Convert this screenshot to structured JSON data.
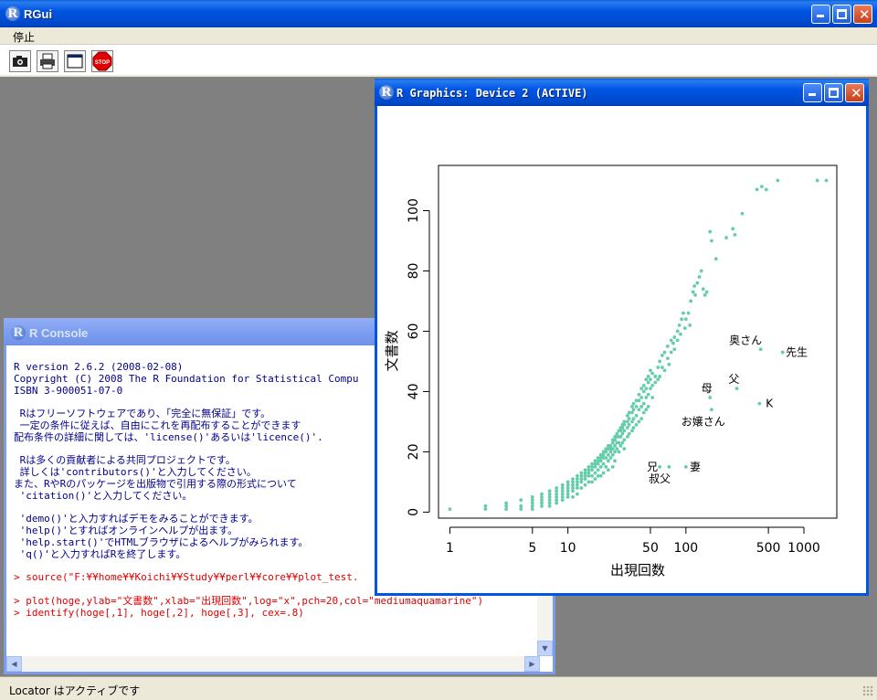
{
  "rgui": {
    "title": "RGui",
    "menu": [
      "停止"
    ],
    "toolbar": [
      "camera-icon",
      "printer-icon",
      "window-icon",
      "stop-icon"
    ],
    "stop_label": "STOP",
    "status": "Locator はアクティブです"
  },
  "console": {
    "title": "R Console",
    "lines": [
      {
        "text": "R version 2.6.2 (2008-02-08)",
        "type": "out"
      },
      {
        "text": "Copyright (C) 2008 The R Foundation for Statistical Compu",
        "type": "out"
      },
      {
        "text": "ISBN 3-900051-07-0",
        "type": "out"
      },
      {
        "text": "",
        "type": "out"
      },
      {
        "text": " Rはフリーソフトウェアであり、「完全に無保証」です。",
        "type": "out"
      },
      {
        "text": " 一定の条件に従えば、自由にこれを再配布することができます",
        "type": "out"
      },
      {
        "text": "配布条件の詳細に関しては、'license()'あるいは'licence()'.",
        "type": "out"
      },
      {
        "text": "",
        "type": "out"
      },
      {
        "text": " Rは多くの貢献者による共同プロジェクトです。",
        "type": "out"
      },
      {
        "text": " 詳しくは'contributors()'と入力してください。",
        "type": "out"
      },
      {
        "text": "また、RやRのパッケージを出版物で引用する際の形式について",
        "type": "out"
      },
      {
        "text": " 'citation()'と入力してください。",
        "type": "out"
      },
      {
        "text": "",
        "type": "out"
      },
      {
        "text": " 'demo()'と入力すればデモをみることができます。",
        "type": "out"
      },
      {
        "text": " 'help()'とすればオンラインヘルプが出ます。",
        "type": "out"
      },
      {
        "text": " 'help.start()'でHTMLブラウザによるヘルプがみられます。",
        "type": "out"
      },
      {
        "text": " 'q()'と入力すればRを終了します。",
        "type": "out"
      },
      {
        "text": "",
        "type": "out"
      },
      {
        "text": "> source(\"F:¥¥home¥¥Koichi¥¥Study¥¥perl¥¥core¥¥plot_test.",
        "type": "cmd"
      },
      {
        "text": "",
        "type": "out"
      },
      {
        "text": "> plot(hoge,ylab=\"文書数\",xlab=\"出現回数\",log=\"x\",pch=20,col=\"mediumaquamarine\")",
        "type": "cmd"
      },
      {
        "text": "> identify(hoge[,1], hoge[,2], hoge[,3], cex=.8)",
        "type": "cmd"
      }
    ]
  },
  "graphics": {
    "title": "R Graphics: Device 2 (ACTIVE)"
  },
  "chart_data": {
    "type": "scatter",
    "xlabel": "出現回数",
    "ylabel": "文書数",
    "x_scale": "log",
    "xlim": [
      0.8,
      1900
    ],
    "ylim": [
      -2,
      115
    ],
    "x_ticks": [
      1,
      5,
      10,
      50,
      100,
      500,
      1000
    ],
    "y_ticks": [
      0,
      20,
      40,
      60,
      80,
      100
    ],
    "color": "#66cdaa",
    "points": [
      [
        1,
        1
      ],
      [
        2,
        2
      ],
      [
        2,
        1
      ],
      [
        3,
        3
      ],
      [
        3,
        2
      ],
      [
        3,
        1
      ],
      [
        4,
        4
      ],
      [
        4,
        2
      ],
      [
        4,
        1
      ],
      [
        5,
        5
      ],
      [
        5,
        4
      ],
      [
        5,
        3
      ],
      [
        5,
        2
      ],
      [
        5,
        1
      ],
      [
        6,
        6
      ],
      [
        6,
        5
      ],
      [
        6,
        4
      ],
      [
        6,
        3
      ],
      [
        6,
        2
      ],
      [
        7,
        7
      ],
      [
        7,
        6
      ],
      [
        7,
        5
      ],
      [
        7,
        4
      ],
      [
        7,
        3
      ],
      [
        7,
        2
      ],
      [
        8,
        8
      ],
      [
        8,
        7
      ],
      [
        8,
        6
      ],
      [
        8,
        5
      ],
      [
        8,
        4
      ],
      [
        8,
        3
      ],
      [
        9,
        9
      ],
      [
        9,
        8
      ],
      [
        9,
        7
      ],
      [
        9,
        6
      ],
      [
        9,
        5
      ],
      [
        9,
        4
      ],
      [
        10,
        10
      ],
      [
        10,
        9
      ],
      [
        10,
        8
      ],
      [
        10,
        7
      ],
      [
        10,
        6
      ],
      [
        10,
        5
      ],
      [
        11,
        11
      ],
      [
        11,
        10
      ],
      [
        11,
        9
      ],
      [
        11,
        8
      ],
      [
        11,
        7
      ],
      [
        11,
        5
      ],
      [
        12,
        12
      ],
      [
        12,
        11
      ],
      [
        12,
        10
      ],
      [
        12,
        9
      ],
      [
        12,
        8
      ],
      [
        12,
        6
      ],
      [
        13,
        13
      ],
      [
        13,
        12
      ],
      [
        13,
        11
      ],
      [
        13,
        10
      ],
      [
        13,
        8
      ],
      [
        14,
        14
      ],
      [
        14,
        13
      ],
      [
        14,
        12
      ],
      [
        14,
        11
      ],
      [
        14,
        9
      ],
      [
        15,
        15
      ],
      [
        15,
        14
      ],
      [
        15,
        13
      ],
      [
        15,
        12
      ],
      [
        15,
        10
      ],
      [
        16,
        16
      ],
      [
        16,
        15
      ],
      [
        16,
        14
      ],
      [
        16,
        12
      ],
      [
        16,
        10
      ],
      [
        17,
        17
      ],
      [
        17,
        16
      ],
      [
        17,
        15
      ],
      [
        17,
        13
      ],
      [
        17,
        11
      ],
      [
        18,
        18
      ],
      [
        18,
        17
      ],
      [
        18,
        16
      ],
      [
        18,
        14
      ],
      [
        18,
        12
      ],
      [
        19,
        19
      ],
      [
        19,
        18
      ],
      [
        19,
        17
      ],
      [
        19,
        15
      ],
      [
        19,
        12
      ],
      [
        20,
        20
      ],
      [
        20,
        19
      ],
      [
        20,
        18
      ],
      [
        20,
        16
      ],
      [
        20,
        13
      ],
      [
        21,
        21
      ],
      [
        21,
        20
      ],
      [
        21,
        18
      ],
      [
        21,
        15
      ],
      [
        22,
        22
      ],
      [
        22,
        21
      ],
      [
        22,
        19
      ],
      [
        22,
        17
      ],
      [
        22,
        14
      ],
      [
        23,
        22
      ],
      [
        23,
        21
      ],
      [
        23,
        20
      ],
      [
        23,
        18
      ],
      [
        24,
        24
      ],
      [
        24,
        23
      ],
      [
        24,
        21
      ],
      [
        24,
        19
      ],
      [
        24,
        15
      ],
      [
        25,
        25
      ],
      [
        25,
        24
      ],
      [
        25,
        22
      ],
      [
        25,
        20
      ],
      [
        25,
        17
      ],
      [
        26,
        26
      ],
      [
        26,
        25
      ],
      [
        26,
        23
      ],
      [
        26,
        21
      ],
      [
        27,
        27
      ],
      [
        27,
        25
      ],
      [
        27,
        23
      ],
      [
        27,
        20
      ],
      [
        28,
        28
      ],
      [
        28,
        27
      ],
      [
        28,
        25
      ],
      [
        28,
        22
      ],
      [
        29,
        29
      ],
      [
        29,
        28
      ],
      [
        29,
        26
      ],
      [
        29,
        23
      ],
      [
        30,
        30
      ],
      [
        30,
        29
      ],
      [
        30,
        27
      ],
      [
        30,
        24
      ],
      [
        30,
        21
      ],
      [
        32,
        32
      ],
      [
        32,
        30
      ],
      [
        32,
        28
      ],
      [
        32,
        25
      ],
      [
        33,
        33
      ],
      [
        33,
        31
      ],
      [
        33,
        29
      ],
      [
        33,
        26
      ],
      [
        35,
        35
      ],
      [
        35,
        33
      ],
      [
        35,
        30
      ],
      [
        35,
        27
      ],
      [
        36,
        36
      ],
      [
        36,
        34
      ],
      [
        36,
        31
      ],
      [
        36,
        28
      ],
      [
        38,
        37
      ],
      [
        38,
        35
      ],
      [
        38,
        32
      ],
      [
        38,
        29
      ],
      [
        40,
        39
      ],
      [
        40,
        37
      ],
      [
        40,
        34
      ],
      [
        40,
        30
      ],
      [
        42,
        41
      ],
      [
        42,
        38
      ],
      [
        42,
        35
      ],
      [
        42,
        31
      ],
      [
        44,
        42
      ],
      [
        44,
        40
      ],
      [
        44,
        36
      ],
      [
        44,
        33
      ],
      [
        46,
        44
      ],
      [
        46,
        41
      ],
      [
        46,
        38
      ],
      [
        46,
        34
      ],
      [
        48,
        45
      ],
      [
        48,
        43
      ],
      [
        48,
        39
      ],
      [
        48,
        35
      ],
      [
        50,
        47
      ],
      [
        50,
        44
      ],
      [
        50,
        41
      ],
      [
        52,
        46
      ],
      [
        52,
        42
      ],
      [
        52,
        38
      ],
      [
        55,
        45
      ],
      [
        55,
        43
      ],
      [
        58,
        48
      ],
      [
        58,
        44
      ],
      [
        60,
        50
      ],
      [
        60,
        45
      ],
      [
        63,
        52
      ],
      [
        63,
        48
      ],
      [
        66,
        53
      ],
      [
        66,
        47
      ],
      [
        70,
        55
      ],
      [
        70,
        51
      ],
      [
        72,
        49
      ],
      [
        75,
        57
      ],
      [
        75,
        53
      ],
      [
        78,
        56
      ],
      [
        80,
        58
      ],
      [
        80,
        54
      ],
      [
        85,
        60
      ],
      [
        85,
        57
      ],
      [
        88,
        62
      ],
      [
        90,
        59
      ],
      [
        92,
        64
      ],
      [
        95,
        66
      ],
      [
        98,
        61
      ],
      [
        100,
        64
      ],
      [
        105,
        66
      ],
      [
        108,
        62
      ],
      [
        110,
        70
      ],
      [
        115,
        73
      ],
      [
        118,
        75
      ],
      [
        120,
        72
      ],
      [
        125,
        76
      ],
      [
        130,
        78
      ],
      [
        135,
        80
      ],
      [
        140,
        74
      ],
      [
        145,
        72
      ],
      [
        150,
        73
      ],
      [
        160,
        93
      ],
      [
        165,
        90
      ],
      [
        180,
        84
      ],
      [
        220,
        91
      ],
      [
        250,
        94
      ],
      [
        260,
        92
      ],
      [
        300,
        99
      ],
      [
        400,
        107
      ],
      [
        440,
        108
      ],
      [
        480,
        107
      ],
      [
        600,
        110
      ],
      [
        1300,
        110
      ],
      [
        1550,
        110
      ],
      [
        60,
        15
      ],
      [
        72,
        15
      ],
      [
        100,
        15
      ],
      [
        160,
        38
      ],
      [
        165,
        34
      ],
      [
        270,
        41
      ],
      [
        420,
        36
      ],
      [
        430,
        54
      ],
      [
        660,
        53
      ]
    ],
    "labels": [
      {
        "text": "兄",
        "x": 52,
        "y": 15
      },
      {
        "text": "叔父",
        "x": 60,
        "y": 11
      },
      {
        "text": "妻",
        "x": 120,
        "y": 15
      },
      {
        "text": "お嬢さん",
        "x": 140,
        "y": 30
      },
      {
        "text": "母",
        "x": 150,
        "y": 41
      },
      {
        "text": "父",
        "x": 255,
        "y": 44
      },
      {
        "text": "K",
        "x": 510,
        "y": 36
      },
      {
        "text": "奥さん",
        "x": 320,
        "y": 57
      },
      {
        "text": "先生",
        "x": 870,
        "y": 53
      }
    ]
  }
}
